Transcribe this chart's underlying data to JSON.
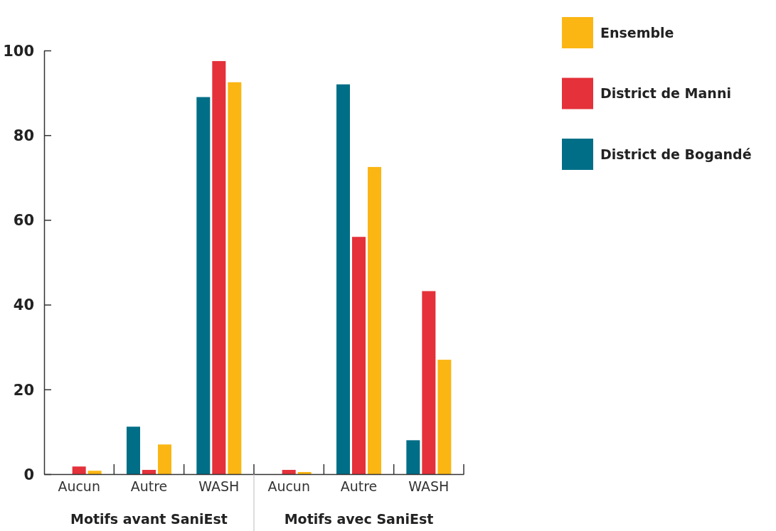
{
  "chart_data": {
    "type": "bar",
    "categories": [
      "Aucun",
      "Autre",
      "WASH",
      "Aucun",
      "Autre",
      "WASH"
    ],
    "series": [
      {
        "name": "District de Bogandé",
        "color": "#006e87",
        "values": [
          0,
          11.2,
          89,
          0,
          92,
          8
        ]
      },
      {
        "name": "District de Manni",
        "color": "#e4313a",
        "values": [
          1.8,
          1,
          97.5,
          1,
          56,
          43.2
        ]
      },
      {
        "name": "Ensemble",
        "color": "#fbb613",
        "values": [
          0.8,
          7,
          92.5,
          0.5,
          72.5,
          27
        ]
      }
    ],
    "ylim": [
      0,
      100
    ],
    "yticks": [
      0,
      20,
      40,
      60,
      80,
      100
    ],
    "grid": false,
    "legend": "top right",
    "annotations": [
      "Motifs avant SaniEst",
      "Motifs avec SaniEst"
    ]
  }
}
